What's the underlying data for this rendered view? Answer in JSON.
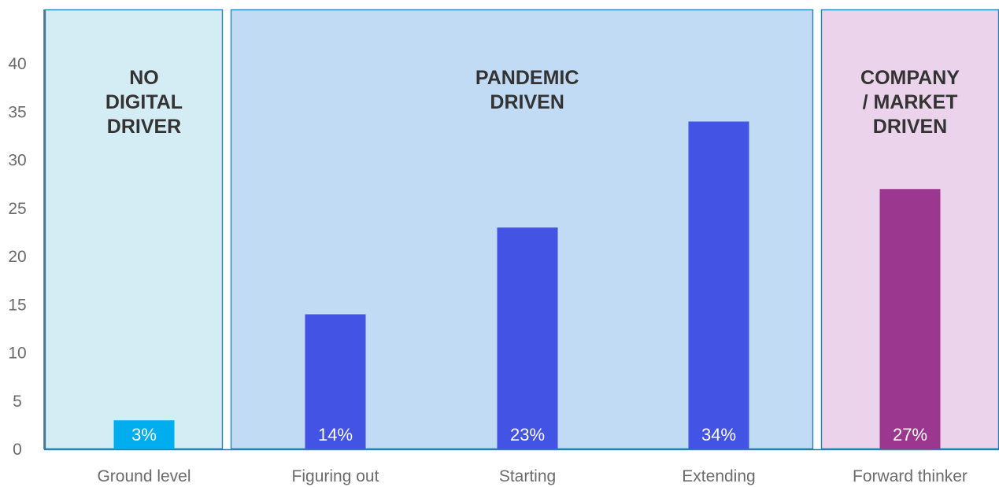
{
  "chart_data": {
    "type": "bar",
    "categories": [
      "Ground level",
      "Figuring out",
      "Starting",
      "Extending",
      "Forward thinker"
    ],
    "values": [
      3,
      14,
      23,
      34,
      27
    ],
    "value_labels": [
      "3%",
      "14%",
      "23%",
      "34%",
      "27%"
    ],
    "bar_colors": [
      "#00adef",
      "#4353e3",
      "#4353e3",
      "#4353e3",
      "#9b378f"
    ],
    "ylim": [
      0,
      45
    ],
    "yticks": [
      0,
      5,
      10,
      15,
      20,
      25,
      30,
      35,
      40
    ],
    "title": "",
    "xlabel": "",
    "ylabel": "",
    "grid": false,
    "groups": [
      {
        "lines": [
          "NO",
          "DIGITAL",
          "DRIVER"
        ],
        "categories": [
          0
        ],
        "fill": "#d4edf5",
        "stroke": "#1f86b5"
      },
      {
        "lines": [
          "PANDEMIC",
          "DRIVEN"
        ],
        "categories": [
          1,
          2,
          3
        ],
        "fill": "#c0dbf3",
        "stroke": "#1f86b5"
      },
      {
        "lines": [
          "COMPANY",
          "/ MARKET",
          "DRIVEN"
        ],
        "categories": [
          4
        ],
        "fill": "#ecd3ec",
        "stroke": "#1f86b5"
      }
    ]
  }
}
